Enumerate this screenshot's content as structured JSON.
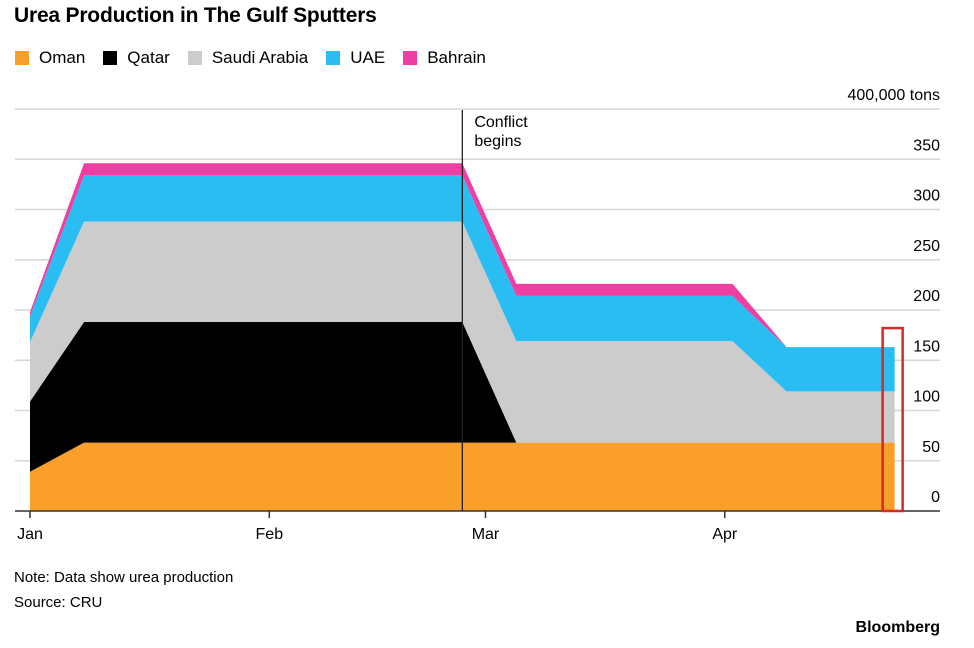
{
  "chart_data": {
    "type": "area",
    "stacked": true,
    "title": "Urea Production in The Gulf Sputters",
    "x": [
      "Jan 1",
      "Jan 8",
      "Feb 26",
      "Mar 5",
      "Apr 2",
      "Apr 9",
      "Apr 23"
    ],
    "x_tick_labels": [
      "Jan",
      "Feb",
      "Mar",
      "Apr"
    ],
    "y_tick_labels": [
      "0",
      "50",
      "100",
      "150",
      "200",
      "250",
      "300",
      "350",
      "400,000 tons"
    ],
    "y_ticks": [
      0,
      50000,
      100000,
      150000,
      200000,
      250000,
      300000,
      350000,
      400000
    ],
    "ylim": [
      0,
      400000
    ],
    "y_unit": "tons",
    "y_axis_side": "right",
    "grid": true,
    "legend_placement": "top-left",
    "series": [
      {
        "name": "Oman",
        "color": "#f99f2a",
        "values": [
          39000,
          68000,
          68000,
          68000,
          68000,
          68000,
          68000
        ]
      },
      {
        "name": "Qatar",
        "color": "#000000",
        "values": [
          70000,
          120000,
          120000,
          0,
          0,
          0,
          0
        ]
      },
      {
        "name": "Saudi Arabia",
        "color": "#cccccc",
        "values": [
          59000,
          100000,
          100000,
          101000,
          101000,
          51000,
          51000
        ]
      },
      {
        "name": "UAE",
        "color": "#29bdf2",
        "values": [
          26000,
          46000,
          46000,
          45000,
          45000,
          44000,
          44000
        ]
      },
      {
        "name": "Bahrain",
        "color": "#ef3fa3",
        "values": [
          4000,
          12000,
          12000,
          12000,
          12000,
          0,
          0
        ]
      }
    ],
    "annotations": [
      {
        "text": "Conflict begins",
        "x": "Feb 26",
        "type": "vertical-line"
      }
    ],
    "highlight_box": {
      "x": "Apr 23",
      "color": "#d42a2a"
    }
  },
  "notes": {
    "note": "Note: Data show urea production",
    "source": "Source: CRU",
    "brand": "Bloomberg"
  }
}
